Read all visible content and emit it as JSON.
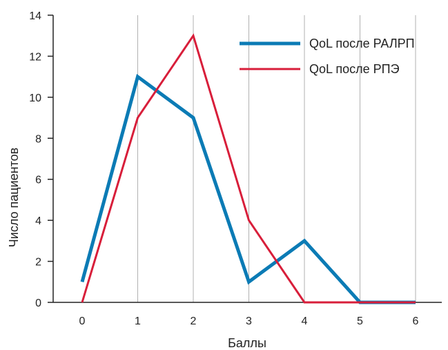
{
  "chart_data": {
    "type": "line",
    "x": [
      0,
      1,
      2,
      3,
      4,
      5,
      6
    ],
    "xlabel": "Баллы",
    "ylabel": "Число пациентов",
    "xlim": [
      0,
      6
    ],
    "ylim": [
      0,
      14
    ],
    "yticks": [
      0,
      2,
      4,
      6,
      8,
      10,
      12,
      14
    ],
    "grid": "vertical",
    "legend_position": "top-right",
    "series": [
      {
        "name": "QoL после РАЛРП",
        "color": "#0b7bb5",
        "values": [
          1,
          11,
          9,
          1,
          3,
          0,
          0
        ]
      },
      {
        "name": "QoL после РПЭ",
        "color": "#d81e3a",
        "values": [
          0,
          9,
          13,
          4,
          0,
          0,
          0
        ]
      }
    ]
  },
  "colors": {
    "axis": "#222222",
    "grid": "#b0b0b0"
  }
}
